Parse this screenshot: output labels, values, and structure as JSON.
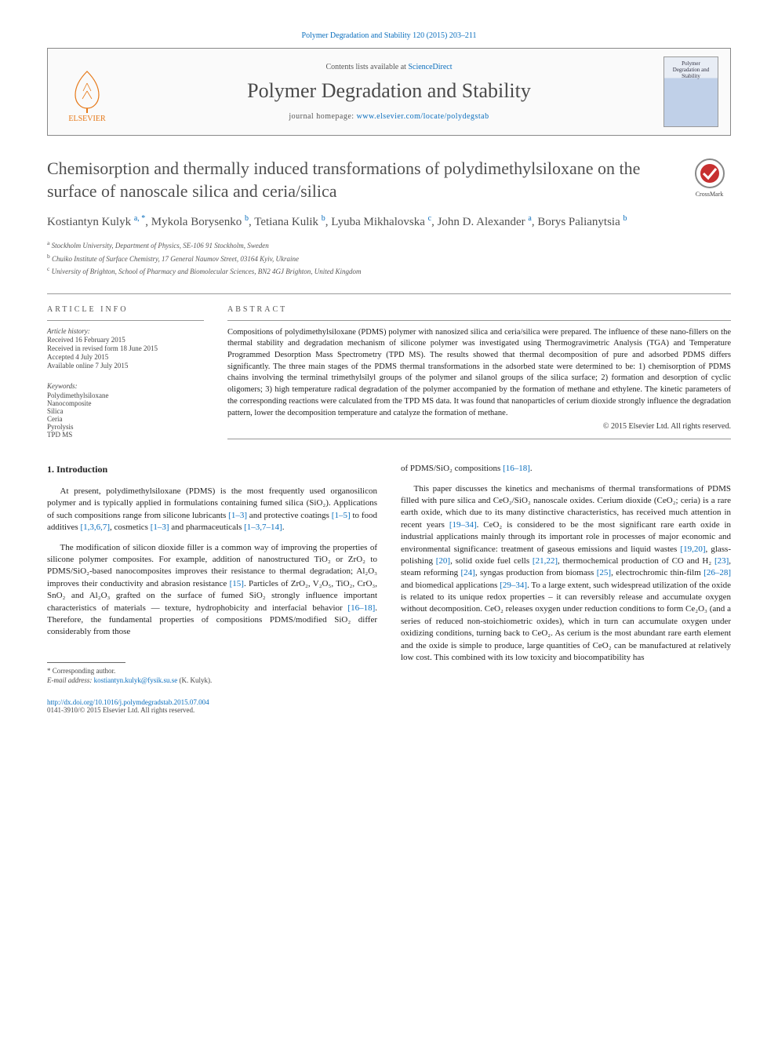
{
  "citation": "Polymer Degradation and Stability 120 (2015) 203–211",
  "header": {
    "contents_prefix": "Contents lists available at ",
    "contents_link": "ScienceDirect",
    "journal": "Polymer Degradation and Stability",
    "homepage_prefix": "journal homepage: ",
    "homepage_url": "www.elsevier.com/locate/polydegstab",
    "publisher": "ELSEVIER",
    "cover_text": "Polymer Degradation and Stability"
  },
  "crossmark": "CrossMark",
  "title": "Chemisorption and thermally induced transformations of polydimethylsiloxane on the surface of nanoscale silica and ceria/silica",
  "authors_html": "Kostiantyn Kulyk <sup>a, *</sup>, Mykola Borysenko <sup>b</sup>, Tetiana Kulik <sup>b</sup>, Lyuba Mikhalovska <sup>c</sup>, John D. Alexander <sup>a</sup>, Borys Palianytsia <sup>b</sup>",
  "affiliations": {
    "a": "Stockholm University, Department of Physics, SE-106 91 Stockholm, Sweden",
    "b": "Chuiko Institute of Surface Chemistry, 17 General Naumov Street, 03164 Kyiv, Ukraine",
    "c": "University of Brighton, School of Pharmacy and Biomolecular Sciences, BN2 4GJ Brighton, United Kingdom"
  },
  "article_info": {
    "heading": "ARTICLE INFO",
    "history_label": "Article history:",
    "received": "Received 16 February 2015",
    "revised": "Received in revised form 18 June 2015",
    "accepted": "Accepted 4 July 2015",
    "online": "Available online 7 July 2015",
    "keywords_label": "Keywords:",
    "keywords": [
      "Polydimethylsiloxane",
      "Nanocomposite",
      "Silica",
      "Ceria",
      "Pyrolysis",
      "TPD MS"
    ]
  },
  "abstract": {
    "heading": "ABSTRACT",
    "text": "Compositions of polydimethylsiloxane (PDMS) polymer with nanosized silica and ceria/silica were prepared. The influence of these nano-fillers on the thermal stability and degradation mechanism of silicone polymer was investigated using Thermogravimetric Analysis (TGA) and Temperature Programmed Desorption Mass Spectrometry (TPD MS). The results showed that thermal decomposition of pure and adsorbed PDMS differs significantly. The three main stages of the PDMS thermal transformations in the adsorbed state were determined to be: 1) chemisorption of PDMS chains involving the terminal trimethylsilyl groups of the polymer and silanol groups of the silica surface; 2) formation and desorption of cyclic oligomers; 3) high temperature radical degradation of the polymer accompanied by the formation of methane and ethylene. The kinetic parameters of the corresponding reactions were calculated from the TPD MS data. It was found that nanoparticles of cerium dioxide strongly influence the degradation pattern, lower the decomposition temperature and catalyze the formation of methane.",
    "copyright": "© 2015 Elsevier Ltd. All rights reserved."
  },
  "body": {
    "section_num": "1.",
    "section_title": "Introduction",
    "p1_a": "At present, polydimethylsiloxane (PDMS) is the most frequently used organosilicon polymer and is typically applied in formulations containing fumed silica (SiO₂). Applications of such compositions range from silicone lubricants ",
    "p1_r1": "[1–3]",
    "p1_b": " and protective coatings ",
    "p1_r2": "[1–5]",
    "p1_c": " to food additives ",
    "p1_r3": "[1,3,6,7]",
    "p1_d": ", cosmetics ",
    "p1_r4": "[1–3]",
    "p1_e": " and pharmaceuticals ",
    "p1_r5": "[1–3,7–14]",
    "p1_f": ".",
    "p2_a": "The modification of silicon dioxide filler is a common way of improving the properties of silicone polymer composites. For example, addition of nanostructured TiO₂ or ZrO₂ to PDMS/SiO₂-based nanocomposites improves their resistance to thermal degradation; Al₂O₃ improves their conductivity and abrasion resistance ",
    "p2_r1": "[15]",
    "p2_b": ". Particles of ZrO₂, V₂O₅, TiO₂, CrO₃, SnO₂ and Al₂O₃ grafted on the surface of fumed SiO₂ strongly influence important characteristics of materials — texture, hydrophobicity and interfacial behavior ",
    "p2_r2": "[16–18]",
    "p2_c": ". Therefore, the fundamental properties of compositions PDMS/modified SiO₂ differ considerably from those",
    "p3_a": "of PDMS/SiO₂ compositions ",
    "p3_r1": "[16–18]",
    "p3_b": ".",
    "p4_a": "This paper discusses the kinetics and mechanisms of thermal transformations of PDMS filled with pure silica and CeO₂/SiO₂ nanoscale oxides. Cerium dioxide (CeO₂; ceria) is a rare earth oxide, which due to its many distinctive characteristics, has received much attention in recent years ",
    "p4_r1": "[19–34]",
    "p4_b": ". CeO₂ is considered to be the most significant rare earth oxide in industrial applications mainly through its important role in processes of major economic and environmental significance: treatment of gaseous emissions and liquid wastes ",
    "p4_r2": "[19,20]",
    "p4_c": ", glass-polishing ",
    "p4_r3": "[20]",
    "p4_d": ", solid oxide fuel cells ",
    "p4_r4": "[21,22]",
    "p4_e": ", thermochemical production of CO and H₂ ",
    "p4_r5": "[23]",
    "p4_f": ", steam reforming ",
    "p4_r6": "[24]",
    "p4_g": ", syngas production from biomass ",
    "p4_r7": "[25]",
    "p4_h": ", electrochromic thin-film ",
    "p4_r8": "[26–28]",
    "p4_i": " and biomedical applications ",
    "p4_r9": "[29–34]",
    "p4_j": ". To a large extent, such widespread utilization of the oxide is related to its unique redox properties – it can reversibly release and accumulate oxygen without decomposition. CeO₂ releases oxygen under reduction conditions to form Ce₂O₃ (and a series of reduced non-stoichiometric oxides), which in turn can accumulate oxygen under oxidizing conditions, turning back to CeO₂. As cerium is the most abundant rare earth element and the oxide is simple to produce, large quantities of CeO₂ can be manufactured at relatively low cost. This combined with its low toxicity and biocompatibility has"
  },
  "corr": {
    "star": "* Corresponding author.",
    "email_label": "E-mail address: ",
    "email": "kostiantyn.kulyk@fysik.su.se",
    "email_name": " (K. Kulyk)."
  },
  "doi": {
    "url": "http://dx.doi.org/10.1016/j.polymdegradstab.2015.07.004",
    "issn": "0141-3910/© 2015 Elsevier Ltd. All rights reserved."
  },
  "colors": {
    "link": "#0a6ebd",
    "elsevier": "#e67817",
    "heading": "#505050"
  }
}
